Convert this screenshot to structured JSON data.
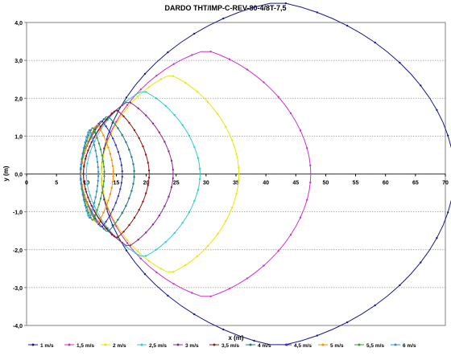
{
  "chart_data": {
    "type": "line",
    "title": "DARDO THT/IMP-C-REV-80-4/8T-7,5",
    "xlabel": "x (m)",
    "ylabel": "y (m)",
    "xlim": [
      0,
      70
    ],
    "ylim": [
      -4,
      4
    ],
    "xticks": [
      {
        "v": 0,
        "label": "0"
      },
      {
        "v": 5,
        "label": "5"
      },
      {
        "v": 10,
        "label": "10"
      },
      {
        "v": 15,
        "label": "15"
      },
      {
        "v": 20,
        "label": "20"
      },
      {
        "v": 25,
        "label": "25"
      },
      {
        "v": 30,
        "label": "30"
      },
      {
        "v": 35,
        "label": "35"
      },
      {
        "v": 40,
        "label": "40"
      },
      {
        "v": 45,
        "label": "45"
      },
      {
        "v": 50,
        "label": "50"
      },
      {
        "v": 55,
        "label": "55"
      },
      {
        "v": 60,
        "label": "60"
      },
      {
        "v": 65,
        "label": "65"
      },
      {
        "v": 70,
        "label": "70"
      }
    ],
    "yticks": [
      {
        "v": 4,
        "label": "4,0"
      },
      {
        "v": 3,
        "label": "3,0"
      },
      {
        "v": 2,
        "label": "2,0"
      },
      {
        "v": 1,
        "label": "1,0"
      },
      {
        "v": 0,
        "label": "0,0"
      },
      {
        "v": -1,
        "label": "-1,0"
      },
      {
        "v": -2,
        "label": "-2,0"
      },
      {
        "v": -3,
        "label": "-3,0"
      },
      {
        "v": -4,
        "label": "-4,0"
      }
    ],
    "grid": "horizontal dotted",
    "legend_position": "bottom",
    "series": [
      {
        "name": "1 m/s",
        "color": "#1a1a8c",
        "x0": 7.5,
        "y0": 0.85,
        "xmax": 71.5,
        "ymax": 3.7,
        "xpeak": 42
      },
      {
        "name": "1,5 m/s",
        "color": "#cc33cc",
        "x0": 7.5,
        "y0": 0.8,
        "xmax": 47.5,
        "ymax": 2.47,
        "xpeak": 30
      },
      {
        "name": "2 m/s",
        "color": "#e8e800",
        "x0": 7.5,
        "y0": 0.75,
        "xmax": 35.5,
        "ymax": 1.87,
        "xpeak": 24
      },
      {
        "name": "2,5 m/s",
        "color": "#33cccc",
        "x0": 7.5,
        "y0": 0.72,
        "xmax": 29.0,
        "ymax": 1.48,
        "xpeak": 19.5
      },
      {
        "name": "3 m/s",
        "color": "#8b2c8b",
        "x0": 7.5,
        "y0": 0.7,
        "xmax": 24.5,
        "ymax": 1.22,
        "xpeak": 17
      },
      {
        "name": "3,5 m/s",
        "color": "#8b1a1a",
        "x0": 7.5,
        "y0": 0.68,
        "xmax": 20.5,
        "ymax": 1.02,
        "xpeak": 15
      },
      {
        "name": "4 m/s",
        "color": "#1a7a7a",
        "x0": 7.5,
        "y0": 0.66,
        "xmax": 18.0,
        "ymax": 0.88,
        "xpeak": 13.5
      },
      {
        "name": "4,5 m/s",
        "color": "#3333cc",
        "x0": 7.5,
        "y0": 0.64,
        "xmax": 16.0,
        "ymax": 0.78,
        "xpeak": 12.5
      },
      {
        "name": "5 m/s",
        "color": "#ff8c00",
        "x0": 7.5,
        "y0": 0.62,
        "xmax": 14.5,
        "ymax": 0.7,
        "xpeak": 11.8
      },
      {
        "name": "5,5 m/s",
        "color": "#33a033",
        "x0": 7.5,
        "y0": 0.6,
        "xmax": 13.0,
        "ymax": 0.64,
        "xpeak": 11.0
      },
      {
        "name": "6 m/s",
        "color": "#2a8fd6",
        "x0": 7.5,
        "y0": 0.58,
        "xmax": 12.0,
        "ymax": 0.6,
        "xpeak": 10.5
      }
    ]
  }
}
